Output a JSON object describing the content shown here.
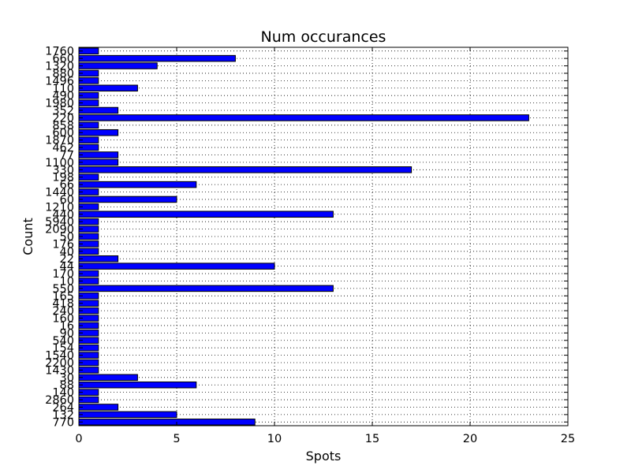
{
  "chart_data": {
    "type": "bar",
    "orientation": "horizontal",
    "title": "Num occurances",
    "xlabel": "Spots",
    "ylabel": "Count",
    "xlim": [
      0,
      25
    ],
    "xticks": [
      0,
      5,
      10,
      15,
      20,
      25
    ],
    "grid": true,
    "bar_color": "#0000ff",
    "categories": [
      "770",
      "132",
      "264",
      "2860",
      "140",
      "88",
      "30",
      "1430",
      "2200",
      "1540",
      "154",
      "540",
      "90",
      "16",
      "160",
      "240",
      "418",
      "165",
      "550",
      "10",
      "170",
      "44",
      "22",
      "40",
      "176",
      "50",
      "2090",
      "5940",
      "440",
      "1210",
      "60",
      "1440",
      "66",
      "198",
      "330",
      "1100",
      "77",
      "462",
      "1870",
      "600",
      "858",
      "220",
      "352",
      "1980",
      "490",
      "110",
      "1496",
      "880",
      "1320",
      "660",
      "1760"
    ],
    "values": [
      9,
      5,
      2,
      1,
      1,
      6,
      3,
      1,
      1,
      1,
      1,
      1,
      1,
      1,
      1,
      1,
      1,
      1,
      13,
      1,
      1,
      10,
      2,
      1,
      1,
      1,
      1,
      1,
      13,
      1,
      5,
      1,
      6,
      1,
      17,
      2,
      2,
      1,
      1,
      2,
      1,
      23,
      2,
      1,
      1,
      3,
      1,
      1,
      4,
      8,
      1
    ]
  }
}
